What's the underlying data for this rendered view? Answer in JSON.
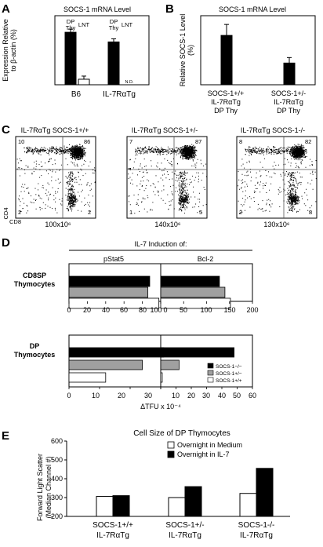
{
  "panels": {
    "A": {
      "letter": "A",
      "title": "SOCS-1 mRNA Level",
      "ylabel_line1": "Expression Relative",
      "ylabel_line2": "to β-actin (%)",
      "bar_labels": [
        "DP",
        "Thy",
        "LNT",
        "DP",
        "Thy",
        "LNT"
      ],
      "nd_label": "N.D.",
      "groups": [
        "B6",
        "IL-7RαTg"
      ]
    },
    "B": {
      "letter": "B",
      "title": "SOCS-1 mRNA Level",
      "ylabel_line1": "Relative SOCS-1 Level",
      "ylabel_line2": "(%)",
      "cat1": [
        "SOCS-1+/+",
        "IL-7RαTg",
        "DP Thy"
      ],
      "cat2": [
        "SOCS-1+/-",
        "IL-7RαTg",
        "DP Thy"
      ]
    },
    "C": {
      "letter": "C",
      "plots": [
        {
          "title": "IL-7RαTg SOCS-1+/+",
          "q": [
            "10",
            "86",
            "2",
            "2"
          ],
          "count": "100x10⁶"
        },
        {
          "title": "IL-7RαTg SOCS-1+/-",
          "q": [
            "7",
            "87",
            "1",
            "5"
          ],
          "count": "140x10⁶"
        },
        {
          "title": "IL-7RαTg SOCS-1-/-",
          "q": [
            "8",
            "82",
            "2",
            "8"
          ],
          "count": "130x10⁶"
        }
      ],
      "yaxis": "CD4",
      "xaxis": "CD8"
    },
    "D": {
      "letter": "D",
      "header": "IL-7 Induction of:",
      "col1": "pStat5",
      "col2": "Bcl-2",
      "row1": [
        "CD8SP",
        "Thymocytes"
      ],
      "row2": [
        "DP",
        "Thymocytes"
      ],
      "top_ticks": [
        "0",
        "20",
        "40",
        "60",
        "80",
        "100",
        "0",
        "50",
        "100",
        "150",
        "200"
      ],
      "bot_ticks": [
        "0",
        "10",
        "20",
        "30",
        "10",
        "20",
        "30",
        "40",
        "50",
        "60"
      ],
      "xlabel": "ΔTFU x 10⁻⁴",
      "legend": [
        "SOCS-1−/−",
        "SOCS-1+/−",
        "SOCS-1+/+"
      ]
    },
    "E": {
      "letter": "E",
      "title": "Cell Size of DP Thymocytes",
      "ylabel_line1": "Forward Light Scatter",
      "ylabel_line2": "(Median Channel #)",
      "yticks": [
        "200",
        "300",
        "400",
        "500",
        "600"
      ],
      "legend": [
        "Overnight in Medium",
        "Overnight in IL-7"
      ],
      "groups": [
        [
          "SOCS-1+/+",
          "IL-7RαTg"
        ],
        [
          "SOCS-1+/-",
          "IL-7RαTg"
        ],
        [
          "SOCS-1-/-",
          "IL-7RαTg"
        ]
      ]
    }
  },
  "chart_data": [
    {
      "panel": "A",
      "type": "bar",
      "title": "SOCS-1 mRNA Level",
      "categories": [
        "B6",
        "IL-7RαTg"
      ],
      "series": [
        {
          "name": "DP Thy",
          "values": [
            3.8,
            3.1
          ],
          "color": "#000000"
        },
        {
          "name": "LNT",
          "values": [
            0.4,
            0
          ],
          "color": "#ffffff"
        }
      ],
      "ylim": [
        0,
        5
      ]
    },
    {
      "panel": "B",
      "type": "bar",
      "title": "SOCS-1 mRNA Level",
      "categories": [
        "SOCS-1+/+ IL-7RαTg DP Thy",
        "SOCS-1+/- IL-7RαTg DP Thy"
      ],
      "values": [
        100,
        44
      ],
      "ylim": [
        0,
        140
      ]
    },
    {
      "panel": "D-top",
      "type": "bar",
      "orientation": "horizontal",
      "categories": [
        "CD8SP Thymocytes"
      ],
      "subplots": [
        {
          "name": "pStat5",
          "xlim": [
            0,
            100
          ],
          "values": [
            88,
            86,
            98
          ]
        },
        {
          "name": "Bcl-2",
          "xlim": [
            0,
            200
          ],
          "values": [
            128,
            140,
            152
          ]
        }
      ],
      "series_names": [
        "SOCS-1−/−",
        "SOCS-1+/−",
        "SOCS-1+/+"
      ],
      "colors": [
        "#000000",
        "#a0a0a0",
        "#ffffff"
      ]
    },
    {
      "panel": "D-bottom",
      "type": "bar",
      "orientation": "horizontal",
      "categories": [
        "DP Thymocytes"
      ],
      "subplots": [
        {
          "name": "pStat5",
          "xlim": [
            0,
            30
          ],
          "values": [
            31,
            24,
            12
          ]
        },
        {
          "name": "Bcl-2",
          "xlim": [
            0,
            60
          ],
          "values": [
            48,
            12,
            1
          ]
        }
      ],
      "series_names": [
        "SOCS-1−/−",
        "SOCS-1+/−",
        "SOCS-1+/+"
      ],
      "colors": [
        "#000000",
        "#a0a0a0",
        "#ffffff"
      ]
    },
    {
      "panel": "E",
      "type": "bar",
      "title": "Cell Size of DP Thymocytes",
      "categories": [
        "SOCS-1+/+ IL-7RαTg",
        "SOCS-1+/- IL-7RαTg",
        "SOCS-1-/- IL-7RαTg"
      ],
      "series": [
        {
          "name": "Overnight in Medium",
          "values": [
            306,
            300,
            322
          ],
          "color": "#ffffff"
        },
        {
          "name": "Overnight in IL-7",
          "values": [
            310,
            358,
            455
          ],
          "color": "#000000"
        }
      ],
      "ylim": [
        200,
        600
      ]
    }
  ]
}
